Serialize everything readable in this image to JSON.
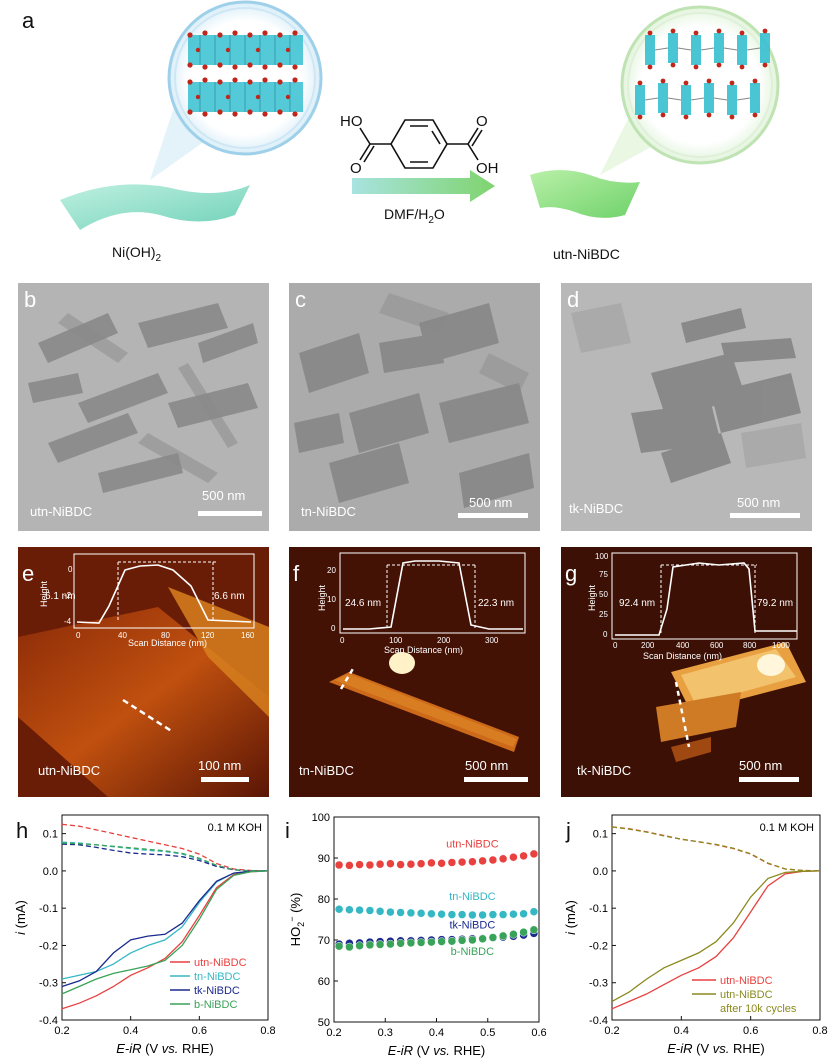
{
  "panels": {
    "a": {
      "letter": "a",
      "left_label": "Ni(OH)",
      "left_sub": "2",
      "right_label": "utn-NiBDC",
      "reagent_top_left": "HO",
      "reagent_top_right": "O",
      "reagent_bottom_left": "O",
      "reagent_bottom_right": "OH",
      "condition": "DMF/H",
      "condition_sub": "2",
      "condition_end": "O"
    },
    "b": {
      "letter": "b",
      "sample": "utn-NiBDC",
      "scale": "500 nm"
    },
    "c": {
      "letter": "c",
      "sample": "tn-NiBDC",
      "scale": "500 nm"
    },
    "d": {
      "letter": "d",
      "sample": "tk-NiBDC",
      "scale": "500 nm"
    },
    "e": {
      "letter": "e",
      "sample": "utn-NiBDC",
      "scale": "100 nm",
      "inset": {
        "ylabel": "Height",
        "xlabel": "Scan Distance (nm)",
        "xticks": [
          "0",
          "40",
          "80",
          "120",
          "160"
        ],
        "yticks": [
          "-4",
          "-2",
          "0"
        ],
        "left_height": "6.1 nm",
        "right_height": "6.6 nm"
      }
    },
    "f": {
      "letter": "f",
      "sample": "tn-NiBDC",
      "scale": "500 nm",
      "inset": {
        "ylabel": "Height",
        "xlabel": "Scan Distance (nm)",
        "xticks": [
          "0",
          "100",
          "200",
          "300"
        ],
        "yticks": [
          "0",
          "10",
          "20"
        ],
        "left_height": "24.6 nm",
        "right_height": "22.3 nm"
      }
    },
    "g": {
      "letter": "g",
      "sample": "tk-NiBDC",
      "scale": "500 nm",
      "inset": {
        "ylabel": "Height",
        "xlabel": "Scan Distance (nm)",
        "xticks": [
          "0",
          "200",
          "400",
          "600",
          "800",
          "1000"
        ],
        "yticks": [
          "0",
          "25",
          "50",
          "75",
          "100"
        ],
        "left_height": "92.4 nm",
        "right_height": "79.2 nm"
      }
    }
  },
  "chart_data": [
    {
      "panel": "h",
      "type": "line",
      "annotation": "0.1 M KOH",
      "xlabel": "E-iR (V vs. RHE)",
      "ylabel": "i (mA)",
      "xlim": [
        0.2,
        0.8
      ],
      "ylim": [
        -0.4,
        0.15
      ],
      "xticks": [
        0.2,
        0.4,
        0.6,
        0.8
      ],
      "yticks": [
        -0.4,
        -0.3,
        -0.2,
        -0.1,
        0.0,
        0.1
      ],
      "series": [
        {
          "name": "utn-NiBDC",
          "color": "#e8413f",
          "disk_x": [
            0.2,
            0.25,
            0.3,
            0.35,
            0.4,
            0.45,
            0.5,
            0.55,
            0.6,
            0.65,
            0.7,
            0.75,
            0.8
          ],
          "disk_y": [
            -0.37,
            -0.355,
            -0.335,
            -0.31,
            -0.28,
            -0.26,
            -0.235,
            -0.19,
            -0.12,
            -0.045,
            -0.01,
            -0.002,
            0.0
          ],
          "ring_y": [
            0.125,
            0.12,
            0.11,
            0.1,
            0.09,
            0.08,
            0.07,
            0.06,
            0.045,
            0.02,
            0.005,
            0.001,
            0.0
          ]
        },
        {
          "name": "tn-NiBDC",
          "color": "#35b8c4",
          "disk_x": [
            0.2,
            0.25,
            0.3,
            0.35,
            0.4,
            0.45,
            0.5,
            0.55,
            0.6,
            0.65,
            0.7,
            0.75,
            0.8
          ],
          "disk_y": [
            -0.29,
            -0.28,
            -0.27,
            -0.25,
            -0.22,
            -0.2,
            -0.185,
            -0.15,
            -0.085,
            -0.03,
            -0.006,
            -0.001,
            0.0
          ],
          "ring_y": [
            0.077,
            0.075,
            0.07,
            0.065,
            0.06,
            0.055,
            0.052,
            0.045,
            0.032,
            0.014,
            0.003,
            0.0,
            0.0
          ]
        },
        {
          "name": "tk-NiBDC",
          "color": "#1b2a8f",
          "disk_x": [
            0.2,
            0.25,
            0.3,
            0.35,
            0.4,
            0.45,
            0.5,
            0.55,
            0.6,
            0.65,
            0.7,
            0.75,
            0.8
          ],
          "disk_y": [
            -0.31,
            -0.295,
            -0.27,
            -0.22,
            -0.185,
            -0.175,
            -0.17,
            -0.14,
            -0.08,
            -0.028,
            -0.006,
            -0.001,
            0.0
          ],
          "ring_y": [
            0.072,
            0.07,
            0.063,
            0.055,
            0.048,
            0.045,
            0.043,
            0.038,
            0.028,
            0.012,
            0.003,
            0.0,
            0.0
          ]
        },
        {
          "name": "b-NiBDC",
          "color": "#3aa35a",
          "disk_x": [
            0.2,
            0.25,
            0.3,
            0.35,
            0.4,
            0.45,
            0.5,
            0.55,
            0.6,
            0.65,
            0.7,
            0.75,
            0.8
          ],
          "disk_y": [
            -0.33,
            -0.31,
            -0.29,
            -0.275,
            -0.265,
            -0.255,
            -0.24,
            -0.2,
            -0.13,
            -0.05,
            -0.012,
            -0.002,
            0.0
          ],
          "ring_y": [
            0.075,
            0.073,
            0.07,
            0.066,
            0.062,
            0.058,
            0.054,
            0.047,
            0.034,
            0.015,
            0.003,
            0.0,
            0.0
          ]
        }
      ]
    },
    {
      "panel": "i",
      "type": "scatter",
      "xlabel": "E-iR (V vs. RHE)",
      "ylabel": "HO2- (%)",
      "xlim": [
        0.2,
        0.6
      ],
      "ylim": [
        50,
        100
      ],
      "xticks": [
        0.2,
        0.3,
        0.4,
        0.5,
        0.6
      ],
      "yticks": [
        50,
        60,
        70,
        80,
        90,
        100
      ],
      "x": [
        0.21,
        0.23,
        0.25,
        0.27,
        0.29,
        0.31,
        0.33,
        0.35,
        0.37,
        0.39,
        0.41,
        0.43,
        0.45,
        0.47,
        0.49,
        0.51,
        0.53,
        0.55,
        0.57,
        0.59
      ],
      "series": [
        {
          "name": "utn-NiBDC",
          "color": "#e8413f",
          "values": [
            88.3,
            88.2,
            88.4,
            88.3,
            88.5,
            88.6,
            88.4,
            88.5,
            88.6,
            88.8,
            88.7,
            88.9,
            89.0,
            89.1,
            89.3,
            89.5,
            89.8,
            90.2,
            90.5,
            91.0
          ]
        },
        {
          "name": "tn-NiBDC",
          "color": "#35b8c4",
          "values": [
            77.5,
            77.4,
            77.3,
            77.2,
            77.0,
            76.8,
            76.7,
            76.6,
            76.5,
            76.4,
            76.3,
            76.2,
            76.2,
            76.1,
            76.1,
            76.2,
            76.2,
            76.3,
            76.4,
            76.9
          ]
        },
        {
          "name": "tk-NiBDC",
          "color": "#1b2a8f",
          "values": [
            69.0,
            69.2,
            69.3,
            69.5,
            69.6,
            69.7,
            69.8,
            69.8,
            69.9,
            70.0,
            70.1,
            70.1,
            70.2,
            70.3,
            70.4,
            70.5,
            70.7,
            70.9,
            71.2,
            71.6
          ]
        },
        {
          "name": "b-NiBDC",
          "color": "#3aa35a",
          "values": [
            68.5,
            68.3,
            68.6,
            68.8,
            68.9,
            69.0,
            69.2,
            69.3,
            69.4,
            69.5,
            69.6,
            69.7,
            69.9,
            70.0,
            70.3,
            70.6,
            71.0,
            71.4,
            71.9,
            72.5
          ]
        }
      ]
    },
    {
      "panel": "j",
      "type": "line",
      "annotation": "0.1 M KOH",
      "xlabel": "E-iR (V vs. RHE)",
      "ylabel": "i (mA)",
      "xlim": [
        0.2,
        0.8
      ],
      "ylim": [
        -0.4,
        0.15
      ],
      "xticks": [
        0.2,
        0.4,
        0.6,
        0.8
      ],
      "yticks": [
        -0.4,
        -0.3,
        -0.2,
        -0.1,
        0.0,
        0.1
      ],
      "series": [
        {
          "name": "utn-NiBDC",
          "color": "#e8413f",
          "disk_x": [
            0.2,
            0.25,
            0.3,
            0.35,
            0.4,
            0.45,
            0.5,
            0.55,
            0.6,
            0.65,
            0.7,
            0.75,
            0.8
          ],
          "disk_y": [
            -0.37,
            -0.35,
            -0.33,
            -0.305,
            -0.28,
            -0.26,
            -0.23,
            -0.18,
            -0.11,
            -0.04,
            -0.008,
            -0.001,
            0.0
          ],
          "ring_y": [
            0.118,
            0.113,
            0.105,
            0.095,
            0.085,
            0.078,
            0.07,
            0.06,
            0.045,
            0.02,
            0.005,
            0.001,
            0.0
          ]
        },
        {
          "name": "utn-NiBDC after 10k cycles",
          "label_line1": "utn-NiBDC",
          "label_line2": "after 10k cycles",
          "color": "#8a8a1e",
          "disk_x": [
            0.2,
            0.25,
            0.3,
            0.35,
            0.4,
            0.45,
            0.5,
            0.55,
            0.6,
            0.65,
            0.7,
            0.75,
            0.8
          ],
          "disk_y": [
            -0.35,
            -0.325,
            -0.29,
            -0.26,
            -0.24,
            -0.22,
            -0.19,
            -0.14,
            -0.07,
            -0.02,
            -0.004,
            -0.001,
            0.0
          ],
          "ring_y": [
            0.118,
            0.112,
            0.104,
            0.094,
            0.085,
            0.078,
            0.071,
            0.061,
            0.046,
            0.021,
            0.005,
            0.001,
            0.0
          ]
        }
      ]
    }
  ]
}
